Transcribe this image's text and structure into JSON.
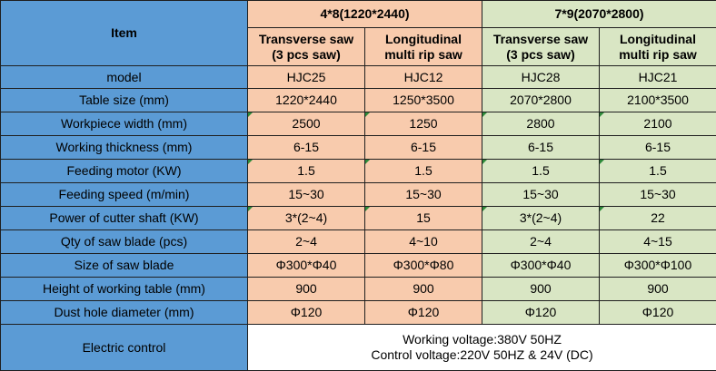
{
  "header": {
    "item": "Item",
    "group1": "4*8(1220*2440)",
    "group2": "7*9(2070*2800)",
    "columns": [
      {
        "line1": "Transverse saw",
        "line2": "(3 pcs saw)"
      },
      {
        "line1": "Longitudinal",
        "line2": "multi rip saw"
      },
      {
        "line1": "Transverse saw",
        "line2": "(3 pcs saw)"
      },
      {
        "line1": "Longitudinal",
        "line2": "multi rip saw"
      }
    ]
  },
  "rows": [
    {
      "label": "model",
      "values": [
        "HJC25",
        "HJC12",
        "HJC28",
        "HJC21"
      ]
    },
    {
      "label": "Table size (mm)",
      "values": [
        "1220*2440",
        "1250*3500",
        "2070*2800",
        "2100*3500"
      ]
    },
    {
      "label": "Workpiece width (mm)",
      "values": [
        "2500",
        "1250",
        "2800",
        "2100"
      ]
    },
    {
      "label": "Working thickness (mm)",
      "values": [
        "6-15",
        "6-15",
        "6-15",
        "6-15"
      ]
    },
    {
      "label": "Feeding motor (KW)",
      "values": [
        "1.5",
        "1.5",
        "1.5",
        "1.5"
      ]
    },
    {
      "label": "Feeding speed (m/min)",
      "values": [
        "15~30",
        "15~30",
        "15~30",
        "15~30"
      ]
    },
    {
      "label": "Power of cutter shaft (KW)",
      "values": [
        "3*(2~4)",
        "15",
        "3*(2~4)",
        "22"
      ]
    },
    {
      "label": "Qty of saw blade (pcs)",
      "values": [
        "2~4",
        "4~10",
        "2~4",
        "4~15"
      ]
    },
    {
      "label": "Size of saw blade",
      "values": [
        "Φ300*Φ40",
        "Φ300*Φ80",
        "Φ300*Φ40",
        "Φ300*Φ100"
      ]
    },
    {
      "label": "Height of working table (mm)",
      "values": [
        "900",
        "900",
        "900",
        "900"
      ]
    },
    {
      "label": "Dust hole diameter (mm)",
      "values": [
        "Φ120",
        "Φ120",
        "Φ120",
        "Φ120"
      ]
    }
  ],
  "electric": {
    "label": "Electric control",
    "line1": "Working voltage:380V 50HZ",
    "line2": "Control voltage:220V 50HZ & 24V (DC)"
  },
  "colors": {
    "label_bg": "#5b9bd5",
    "group1_bg": "#f8cbad",
    "group2_bg": "#d9e6c4",
    "border": "#1f1f1f",
    "cell_marker": "#2e8b3a"
  }
}
